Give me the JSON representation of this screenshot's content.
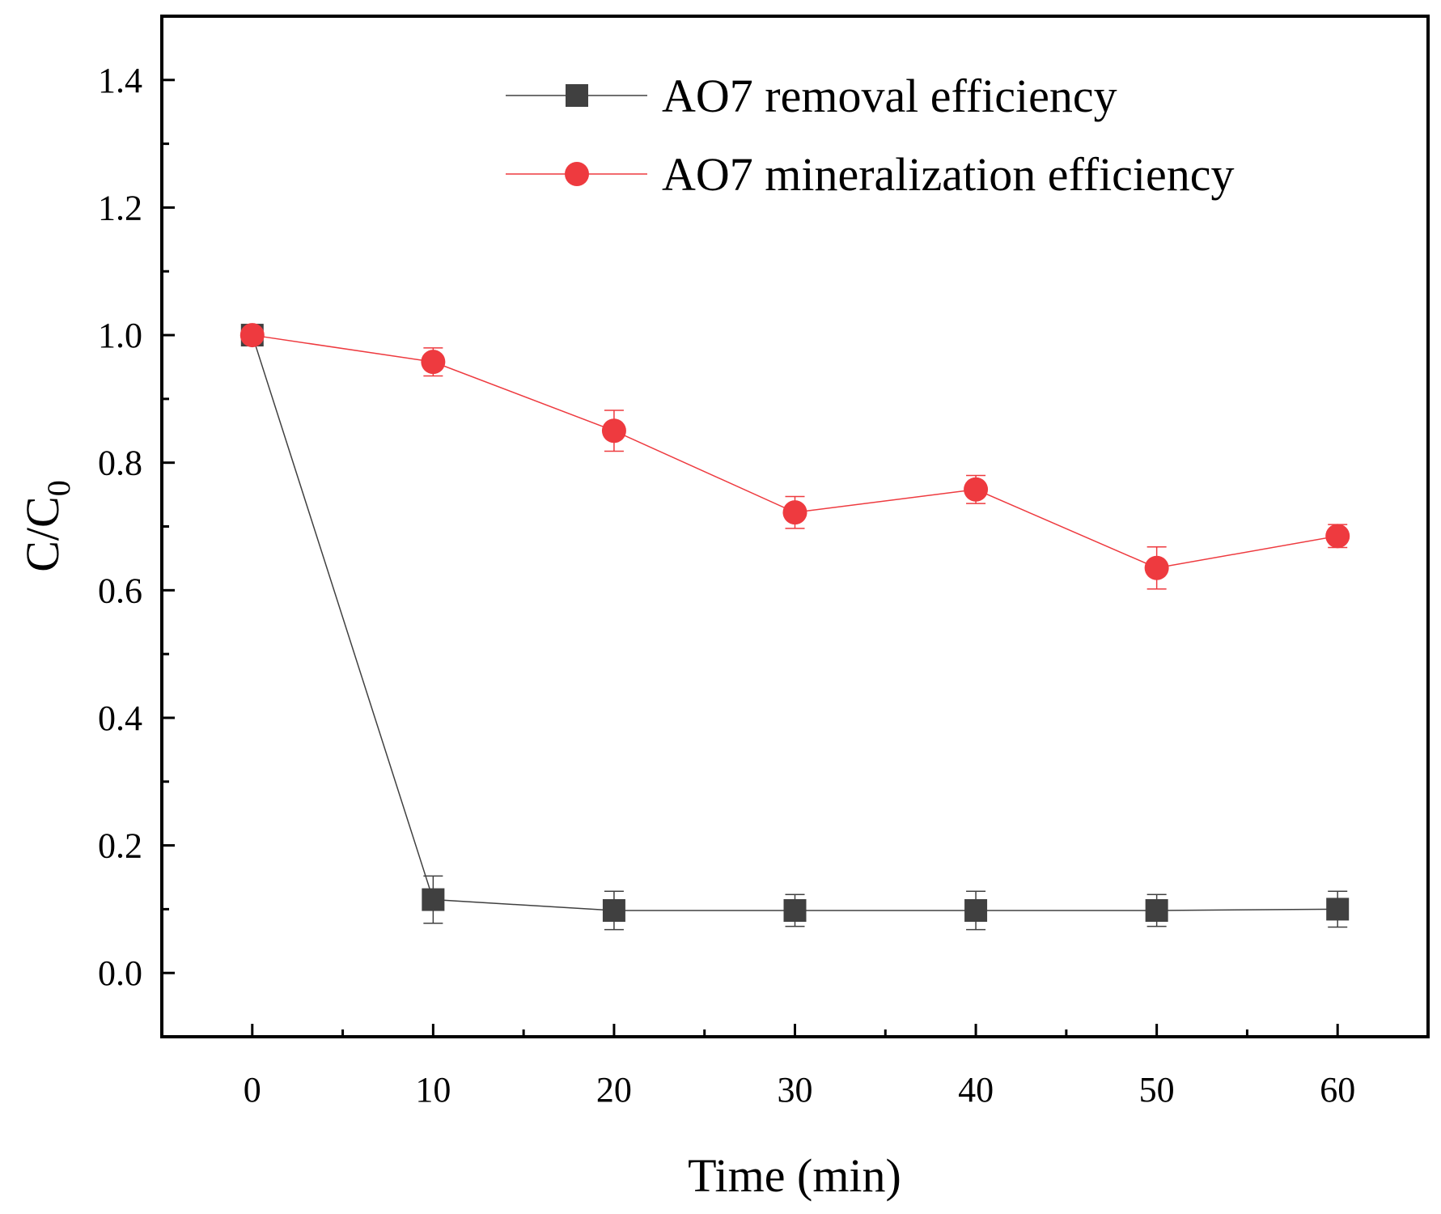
{
  "chart_data": {
    "type": "line",
    "title": "",
    "xlabel": "Time (min)",
    "ylabel": "C/C",
    "ylabel_subscript": "0",
    "xlim": [
      -5,
      65
    ],
    "ylim": [
      -0.1,
      1.5
    ],
    "x_ticks": [
      0,
      10,
      20,
      30,
      40,
      50,
      60
    ],
    "x_tick_labels": [
      "0",
      "10",
      "20",
      "30",
      "40",
      "50",
      "60"
    ],
    "x_minor_ticks": [
      5,
      15,
      25,
      35,
      45,
      55
    ],
    "y_ticks": [
      0.0,
      0.2,
      0.4,
      0.6,
      0.8,
      1.0,
      1.2,
      1.4
    ],
    "y_tick_labels": [
      "0.0",
      "0.2",
      "0.4",
      "0.6",
      "0.8",
      "1.0",
      "1.2",
      "1.4"
    ],
    "y_minor_ticks": [
      0.1,
      0.3,
      0.5,
      0.7,
      0.9,
      1.1,
      1.3
    ],
    "grid": false,
    "legend_position": "top-right",
    "x": [
      0,
      10,
      20,
      30,
      40,
      50,
      60
    ],
    "series": [
      {
        "name": "AO7 removal efficiency",
        "marker": "square",
        "color": "#404040",
        "values": [
          1.0,
          0.115,
          0.098,
          0.098,
          0.098,
          0.098,
          0.1
        ],
        "errors": [
          0.0,
          0.037,
          0.03,
          0.025,
          0.03,
          0.025,
          0.028
        ]
      },
      {
        "name": "AO7 mineralization efficiency",
        "marker": "circle",
        "color": "#ee3a3f",
        "values": [
          1.0,
          0.958,
          0.85,
          0.722,
          0.758,
          0.635,
          0.685
        ],
        "errors": [
          0.0,
          0.022,
          0.032,
          0.025,
          0.022,
          0.033,
          0.018
        ]
      }
    ]
  }
}
